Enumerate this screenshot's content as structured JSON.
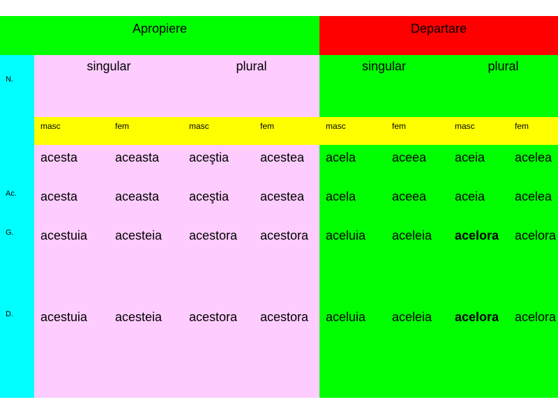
{
  "colors": {
    "header_left": "#00ff00",
    "header_right": "#ff0000",
    "case_column": "#00ffff",
    "near_body": "#ffccff",
    "far_body": "#00ff00",
    "gender_row": "#ffff00"
  },
  "groups": {
    "near": "Apropiere",
    "far": "Departare"
  },
  "numbers": {
    "near_singular": "singular",
    "near_plural": "plural",
    "far_singular": "singular",
    "far_plural": "plural"
  },
  "genders": [
    "masc",
    "fem",
    "masc",
    "fem",
    "masc",
    "fem",
    "masc",
    "fem"
  ],
  "cases": {
    "n": "N.",
    "ac": "Ac.",
    "g": "G.",
    "d": "D."
  },
  "rows": [
    [
      "acesta",
      "aceasta",
      "aceştia",
      "acestea",
      "acela",
      "aceea",
      "aceia",
      "acelea"
    ],
    [
      "acesta",
      "aceasta",
      "aceştia",
      "acestea",
      "acela",
      "aceea",
      "aceia",
      "acelea"
    ],
    [
      "acestuia",
      "acesteia",
      "acestora",
      "acestora",
      "aceluia",
      "aceleia",
      "acelora",
      "acelora"
    ],
    [
      "acestuia",
      "acesteia",
      "acestora",
      "acestora",
      "aceluia",
      "aceleia",
      "acelora",
      "acelora"
    ]
  ]
}
